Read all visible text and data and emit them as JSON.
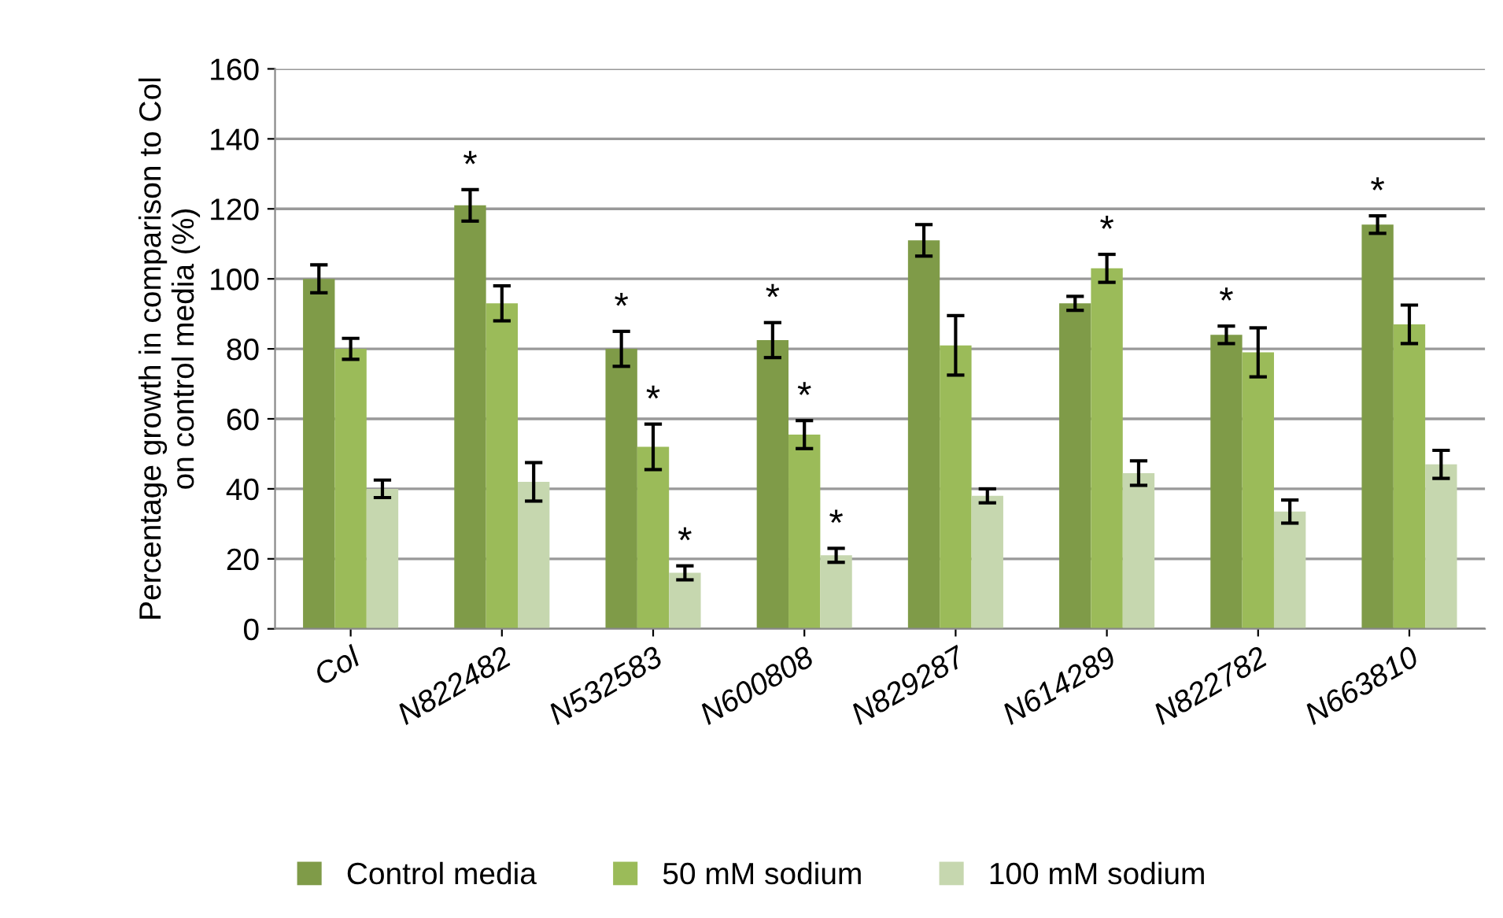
{
  "chart_data": {
    "type": "bar",
    "ylabel": "Percentage growth in comparison to Col\non control media (%)",
    "categories": [
      "Col",
      "N822482",
      "N532583",
      "N600808",
      "N829287",
      "N614289",
      "N822782",
      "N663810"
    ],
    "series": [
      {
        "name": "Control media",
        "color": "#7f9b48",
        "values": [
          100,
          121,
          80,
          82.5,
          111,
          93,
          84,
          115.5
        ],
        "errors": [
          4,
          4.5,
          5,
          5,
          4.5,
          2,
          2.5,
          2.5
        ],
        "value_labels": [
          null,
          "*",
          "*",
          "*",
          null,
          null,
          "*",
          "*"
        ]
      },
      {
        "name": "50 mM sodium",
        "color": "#9bbb59",
        "values": [
          80,
          93,
          52,
          55.5,
          81,
          103,
          79,
          87
        ],
        "errors": [
          3,
          5,
          6.5,
          4,
          8.5,
          4,
          7,
          5.5
        ],
        "value_labels": [
          null,
          null,
          "*",
          "*",
          null,
          "*",
          null,
          null
        ]
      },
      {
        "name": "100 mM sodium",
        "color": "#c6d7af",
        "values": [
          40,
          42,
          16,
          21,
          38,
          44.5,
          33.5,
          47
        ],
        "errors": [
          2.5,
          5.5,
          2,
          2,
          2,
          3.5,
          3.3,
          4
        ],
        "value_labels": [
          null,
          null,
          "*",
          "*",
          null,
          null,
          null,
          null
        ]
      }
    ],
    "ylim": [
      0,
      160
    ],
    "yticks": [
      0,
      20,
      40,
      60,
      80,
      100,
      120,
      140,
      160
    ],
    "grid": "y",
    "legend": "bottom"
  }
}
